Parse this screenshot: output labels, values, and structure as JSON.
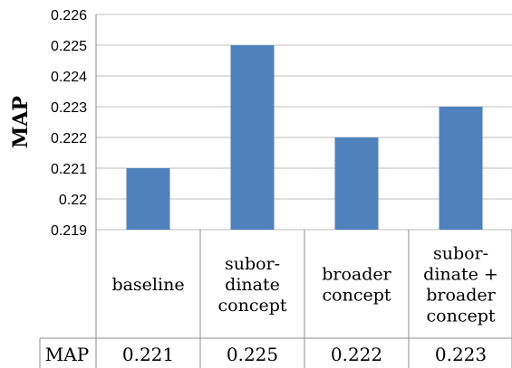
{
  "chart_data": {
    "type": "bar",
    "categories": [
      [
        "baseline"
      ],
      [
        "subor-",
        "dinate",
        "concept"
      ],
      [
        "broader",
        "concept"
      ],
      [
        "subor-",
        "dinate +",
        "broader",
        "concept"
      ]
    ],
    "series": [
      {
        "name": "MAP",
        "values": [
          0.221,
          0.225,
          0.222,
          0.223
        ],
        "color": "#4f81bd"
      }
    ],
    "yticks": [
      "0.219",
      "0.22",
      "0.221",
      "0.222",
      "0.223",
      "0.224",
      "0.225",
      "0.226"
    ],
    "ylim": [
      0.219,
      0.226
    ],
    "ylabel": "MAP",
    "xlabel": "",
    "title": "",
    "grid": true,
    "data_table": {
      "row_label": "MAP",
      "values": [
        "0.221",
        "0.225",
        "0.222",
        "0.223"
      ]
    }
  }
}
